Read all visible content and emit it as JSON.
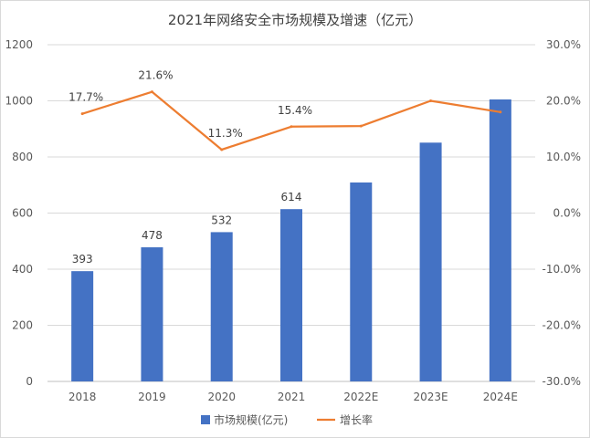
{
  "chart_data": {
    "type": "bar",
    "title": "2021年网络安全市场规模及增速（亿元）",
    "categories": [
      "2018",
      "2019",
      "2020",
      "2021",
      "2022E",
      "2023E",
      "2024E"
    ],
    "series": [
      {
        "name": "市场规模(亿元)",
        "type": "bar",
        "axis": "left",
        "color": "#4472C4",
        "values": [
          393,
          478,
          532,
          614,
          709,
          851,
          1005
        ],
        "labels": [
          "393",
          "478",
          "532",
          "614",
          "",
          "",
          ""
        ]
      },
      {
        "name": "增长率",
        "type": "line",
        "axis": "right",
        "color": "#ED7D31",
        "values": [
          17.7,
          21.6,
          11.3,
          15.4,
          15.5,
          20.0,
          18.0
        ],
        "labels": [
          "17.7%",
          "21.6%",
          "11.3%",
          "15.4%",
          "",
          "",
          ""
        ]
      }
    ],
    "y_left": {
      "range": [
        0,
        1200
      ],
      "ticks": [
        "0",
        "200",
        "400",
        "600",
        "800",
        "1000",
        "1200"
      ]
    },
    "y_right": {
      "range": [
        -30,
        30
      ],
      "ticks": [
        "-30.0%",
        "-20.0%",
        "-10.0%",
        "0.0%",
        "10.0%",
        "20.0%",
        "30.0%"
      ]
    },
    "grid": true,
    "legend": "bottom"
  }
}
